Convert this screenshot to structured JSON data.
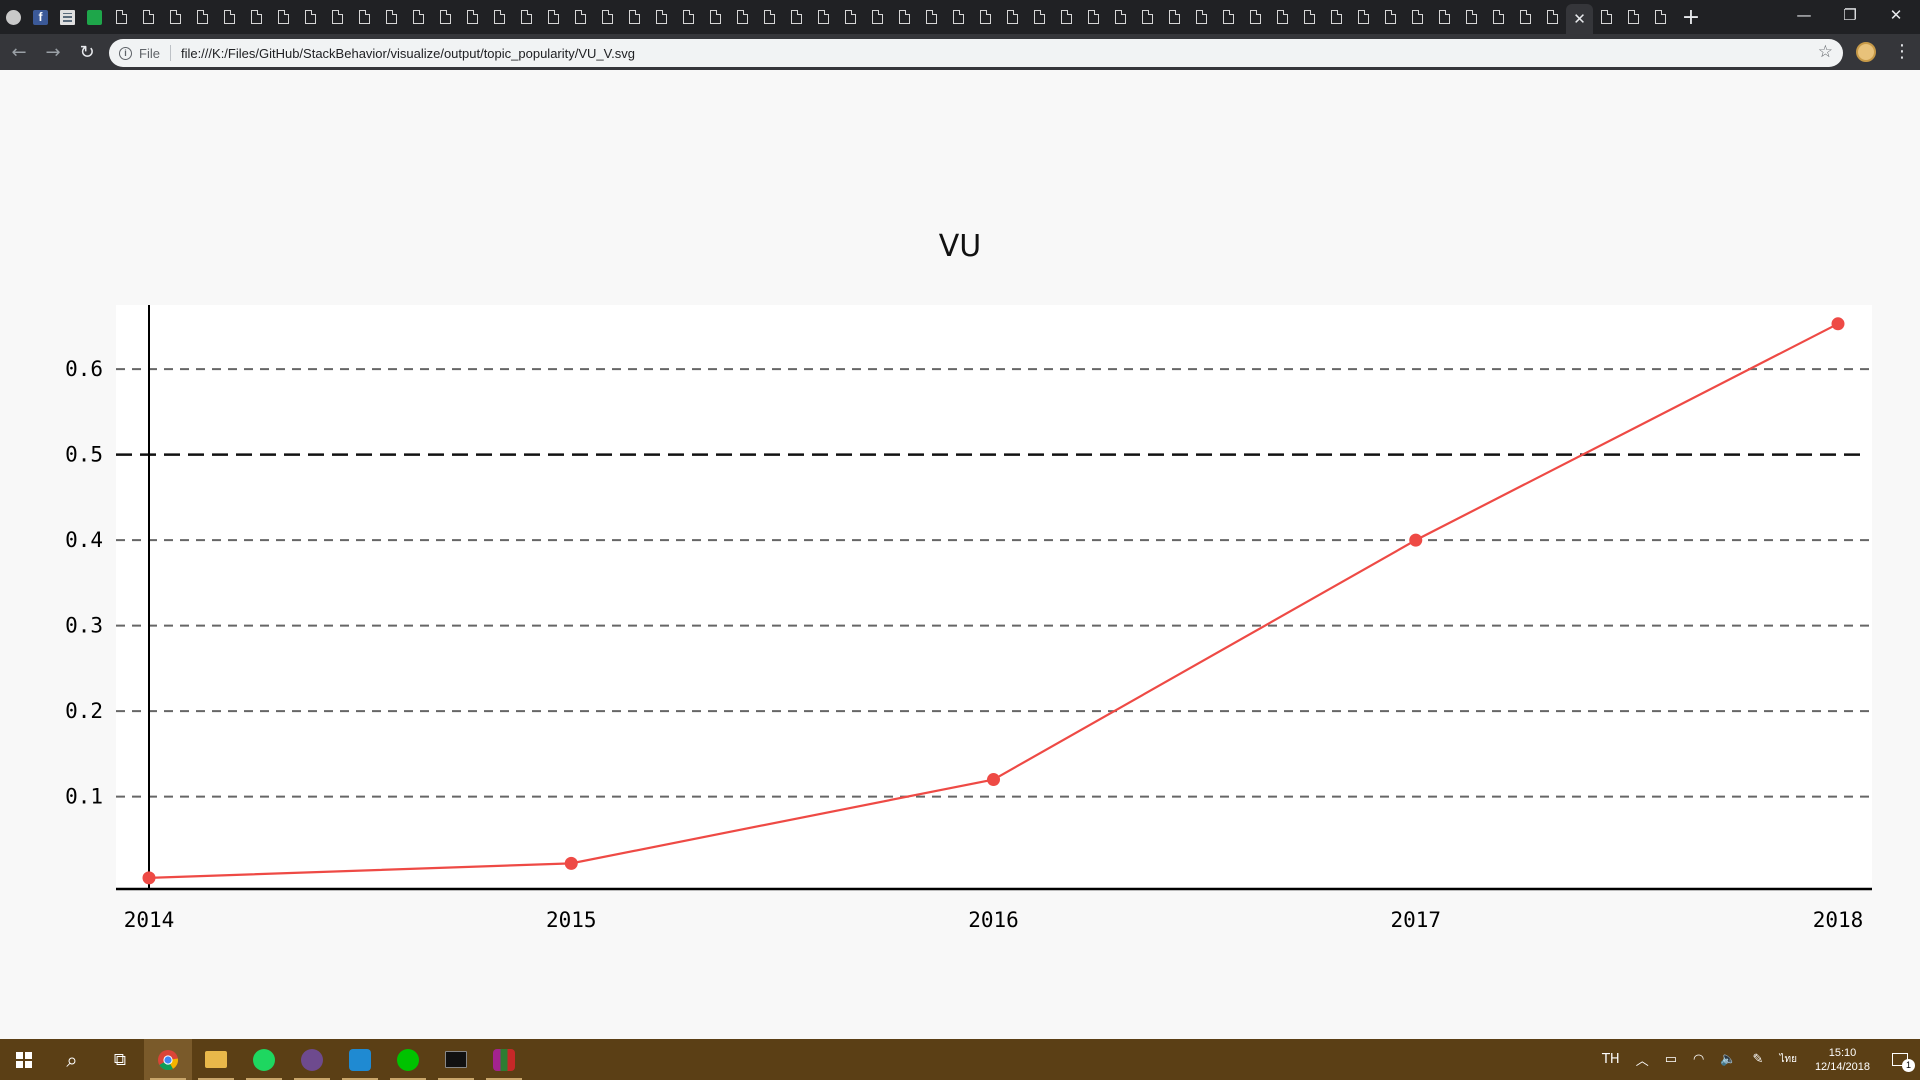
{
  "browser": {
    "active_tab_close": "✕",
    "new_tab": "+",
    "window_controls": {
      "minimize": "—",
      "restore": "❐",
      "close": "✕"
    },
    "address_bar": {
      "scheme_label": "File",
      "url": "file:///K:/Files/GitHub/StackBehavior/visualize/output/topic_popularity/VU_V.svg"
    }
  },
  "chart_data": {
    "type": "line",
    "title": "VU",
    "xlabel": "",
    "ylabel": "",
    "categories": [
      "2014",
      "2015",
      "2016",
      "2017",
      "2018"
    ],
    "series": [
      {
        "values": [
          0.005,
          0.022,
          0.12,
          0.4,
          0.653
        ],
        "color": "#ee4a45"
      }
    ],
    "y_ticks": [
      "0.1",
      "0.2",
      "0.3",
      "0.4",
      "0.5",
      "0.6"
    ],
    "ylim": [
      -0.008,
      0.675
    ],
    "grid": "horizontal dashed",
    "reference_line": 0.5
  },
  "taskbar": {
    "search_icon": "⌕",
    "task_view_icon": "⧉",
    "tray": {
      "language": "TH",
      "chevron": "︿",
      "time": "15:10",
      "date": "12/14/2018",
      "notification_count": "1"
    }
  }
}
